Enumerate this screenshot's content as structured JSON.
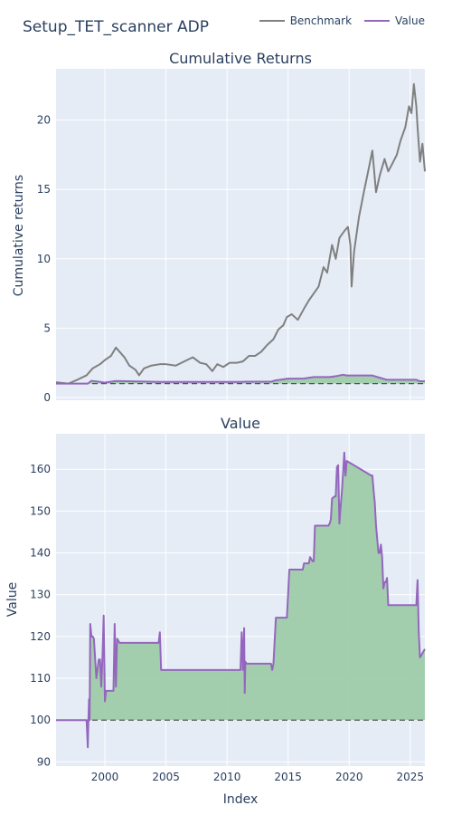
{
  "title": "Setup_TET_scanner ADP",
  "legend": {
    "items": [
      {
        "label": "Benchmark",
        "color": "#808080"
      },
      {
        "label": "Value",
        "color": "#9467bd"
      }
    ]
  },
  "fill_color": "#9fccaa",
  "chart_data": [
    {
      "type": "line",
      "title": "Cumulative Returns",
      "ylabel": "Cumulative returns",
      "xlabel": "",
      "xlim": [
        1996.0,
        2026.2
      ],
      "ylim": [
        -0.2,
        23.7
      ],
      "yticks": [
        0,
        5,
        10,
        15,
        20
      ],
      "xticks": [
        2000,
        2005,
        2010,
        2015,
        2020,
        2025
      ],
      "baseline": 1.0,
      "grid": true,
      "series": [
        {
          "name": "Benchmark",
          "color": "#808080",
          "x": [
            1996.0,
            1997.0,
            1997.8,
            1998.5,
            1999.0,
            1999.6,
            2000.0,
            2000.5,
            2000.9,
            2001.2,
            2001.6,
            2002.0,
            2002.5,
            2002.8,
            2003.2,
            2003.8,
            2004.5,
            2005.0,
            2005.8,
            2006.5,
            2007.2,
            2007.8,
            2008.3,
            2008.8,
            2009.2,
            2009.7,
            2010.2,
            2010.8,
            2011.3,
            2011.8,
            2012.3,
            2012.8,
            2013.3,
            2013.8,
            2014.2,
            2014.6,
            2014.9,
            2015.3,
            2015.8,
            2016.3,
            2016.7,
            2017.1,
            2017.5,
            2017.9,
            2018.2,
            2018.6,
            2018.9,
            2019.2,
            2019.6,
            2019.9,
            2020.1,
            2020.2,
            2020.4,
            2020.8,
            2021.2,
            2021.6,
            2021.9,
            2022.2,
            2022.5,
            2022.9,
            2023.2,
            2023.5,
            2023.9,
            2024.2,
            2024.6,
            2024.9,
            2025.1,
            2025.3,
            2025.5,
            2025.6,
            2025.8,
            2026.0,
            2026.2
          ],
          "values": [
            1.1,
            1.0,
            1.3,
            1.6,
            2.1,
            2.4,
            2.7,
            3.0,
            3.6,
            3.3,
            2.9,
            2.3,
            2.0,
            1.6,
            2.1,
            2.3,
            2.4,
            2.4,
            2.3,
            2.6,
            2.9,
            2.5,
            2.4,
            1.9,
            2.4,
            2.2,
            2.5,
            2.5,
            2.6,
            3.0,
            3.0,
            3.3,
            3.8,
            4.2,
            4.9,
            5.2,
            5.8,
            6.0,
            5.6,
            6.4,
            7.0,
            7.5,
            8.0,
            9.4,
            9.0,
            11.0,
            10.0,
            11.5,
            12.0,
            12.3,
            11.0,
            8.0,
            10.5,
            13.0,
            14.8,
            16.5,
            17.8,
            14.8,
            16.0,
            17.2,
            16.3,
            16.8,
            17.5,
            18.5,
            19.5,
            21.0,
            20.5,
            22.6,
            21.0,
            19.5,
            17.0,
            18.3,
            16.3
          ]
        },
        {
          "name": "Value",
          "color": "#9467bd",
          "x": [
            1996.0,
            1998.6,
            1998.9,
            1999.5,
            2000.0,
            2000.9,
            2004.6,
            2011.2,
            2011.5,
            2013.6,
            2014.0,
            2015.0,
            2016.3,
            2017.1,
            2018.4,
            2019.0,
            2019.5,
            2019.8,
            2021.9,
            2022.6,
            2023.1,
            2025.5,
            2025.8,
            2026.2
          ],
          "values": [
            1.0,
            1.0,
            1.2,
            1.14,
            1.07,
            1.185,
            1.12,
            1.12,
            1.14,
            1.14,
            1.24,
            1.36,
            1.37,
            1.47,
            1.47,
            1.55,
            1.64,
            1.585,
            1.585,
            1.4,
            1.275,
            1.275,
            1.17,
            1.17
          ]
        }
      ]
    },
    {
      "type": "area",
      "title": "Value",
      "ylabel": "Value",
      "xlabel": "Index",
      "xlim": [
        1996.0,
        2026.2
      ],
      "ylim": [
        89,
        168.5
      ],
      "yticks": [
        90,
        100,
        110,
        120,
        130,
        140,
        150,
        160
      ],
      "xticks": [
        2000,
        2005,
        2010,
        2015,
        2020,
        2025
      ],
      "baseline": 100,
      "grid": true,
      "series": [
        {
          "name": "Value",
          "color": "#9467bd",
          "x": [
            1996.0,
            1998.5,
            1998.6,
            1998.65,
            1998.7,
            1998.75,
            1998.8,
            1998.9,
            1999.0,
            1999.1,
            1999.3,
            1999.5,
            1999.6,
            1999.7,
            1999.8,
            1999.9,
            2000.0,
            2000.1,
            2000.2,
            2000.3,
            2000.7,
            2000.8,
            2000.9,
            2001.0,
            2001.2,
            2004.4,
            2004.5,
            2004.6,
            2011.1,
            2011.2,
            2011.3,
            2011.4,
            2011.45,
            2011.5,
            2011.6,
            2013.4,
            2013.5,
            2013.6,
            2013.7,
            2013.8,
            2014.0,
            2014.5,
            2014.9,
            2015.0,
            2015.1,
            2016.2,
            2016.3,
            2016.7,
            2016.8,
            2017.0,
            2017.1,
            2017.2,
            2018.3,
            2018.4,
            2018.5,
            2018.6,
            2018.8,
            2018.9,
            2019.0,
            2019.1,
            2019.2,
            2019.3,
            2019.4,
            2019.5,
            2019.6,
            2019.7,
            2019.8,
            2021.8,
            2021.9,
            2022.0,
            2022.1,
            2022.2,
            2022.4,
            2022.5,
            2022.6,
            2022.7,
            2022.8,
            2022.9,
            2023.0,
            2023.1,
            2023.2,
            2025.3,
            2025.4,
            2025.5,
            2025.6,
            2025.7,
            2025.8,
            2026.2
          ],
          "values": [
            100,
            100,
            93.5,
            100,
            105,
            100,
            123,
            120,
            120,
            119.5,
            110,
            114.5,
            114.5,
            108,
            115,
            125,
            104.5,
            107,
            107,
            107,
            107,
            123,
            108,
            119.5,
            118.5,
            118.5,
            121,
            112,
            112,
            121,
            112,
            122,
            106.5,
            114,
            113.5,
            113.5,
            113.5,
            113.5,
            112,
            113.5,
            124.5,
            124.5,
            124.5,
            130,
            136,
            136,
            137.5,
            137.5,
            139,
            138,
            138,
            146.5,
            146.5,
            147,
            148,
            153,
            153.5,
            153.5,
            160.5,
            161,
            147,
            151,
            154.5,
            159,
            164,
            158.5,
            162,
            158.5,
            158.5,
            155,
            152,
            146.5,
            140,
            140,
            142,
            139,
            131.5,
            133,
            133,
            134,
            127.5,
            127.5,
            127.5,
            127.5,
            133.5,
            121,
            115,
            117
          ]
        }
      ]
    }
  ]
}
